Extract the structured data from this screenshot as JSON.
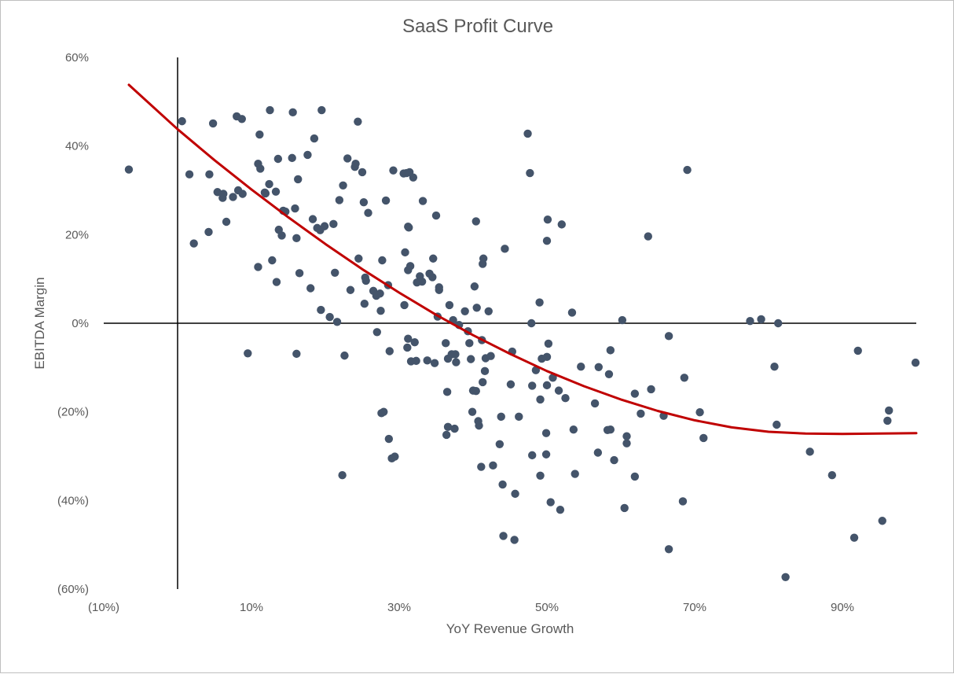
{
  "chart_data": {
    "type": "scatter",
    "title": "SaaS Profit Curve",
    "xlabel": "YoY Revenue Growth",
    "ylabel": "EBITDA Margin",
    "xlim": [
      -10,
      100
    ],
    "ylim": [
      -60,
      60
    ],
    "x_ticks": [
      {
        "value": -10,
        "label": "(10%)"
      },
      {
        "value": 10,
        "label": "10%"
      },
      {
        "value": 30,
        "label": "30%"
      },
      {
        "value": 50,
        "label": "50%"
      },
      {
        "value": 70,
        "label": "70%"
      },
      {
        "value": 90,
        "label": "90%"
      }
    ],
    "y_ticks": [
      {
        "value": 60,
        "label": "60%"
      },
      {
        "value": 40,
        "label": "40%"
      },
      {
        "value": 20,
        "label": "20%"
      },
      {
        "value": 0,
        "label": "0%"
      },
      {
        "value": -20,
        "label": "(20%)"
      },
      {
        "value": -40,
        "label": "(40%)"
      },
      {
        "value": -60,
        "label": "(60%)"
      }
    ],
    "grid": false,
    "legend": "none",
    "colors": {
      "points": "#44546a",
      "trend": "#c00000",
      "axis": "#000000",
      "text": "#595959"
    },
    "series": [
      {
        "type": "scatter",
        "points": [
          [
            -6.6,
            34.7
          ],
          [
            0.6,
            45.6
          ],
          [
            1.6,
            33.6
          ],
          [
            2.2,
            18
          ],
          [
            4.2,
            20.6
          ],
          [
            4.3,
            33.6
          ],
          [
            4.8,
            45.1
          ],
          [
            5.4,
            29.6
          ],
          [
            6.1,
            28.3
          ],
          [
            6.2,
            29.2
          ],
          [
            6.6,
            22.9
          ],
          [
            7.5,
            28.5
          ],
          [
            8,
            46.7
          ],
          [
            8.2,
            30
          ],
          [
            8.7,
            46.1
          ],
          [
            8.8,
            29.2
          ],
          [
            9.5,
            -6.8
          ],
          [
            10.9,
            36
          ],
          [
            10.9,
            12.7
          ],
          [
            11.1,
            42.6
          ],
          [
            11.2,
            34.9
          ],
          [
            11.8,
            29.5
          ],
          [
            11.9,
            29.3
          ],
          [
            12.4,
            31.4
          ],
          [
            12.5,
            48.1
          ],
          [
            12.8,
            14.2
          ],
          [
            13.3,
            29.7
          ],
          [
            13.4,
            9.3
          ],
          [
            13.6,
            37.1
          ],
          [
            13.7,
            21.1
          ],
          [
            14.1,
            19.8
          ],
          [
            14.3,
            25.4
          ],
          [
            14.6,
            25.2
          ],
          [
            15.5,
            37.3
          ],
          [
            15.6,
            47.6
          ],
          [
            15.9,
            25.9
          ],
          [
            16.1,
            19.2
          ],
          [
            16.1,
            -6.9
          ],
          [
            16.3,
            32.5
          ],
          [
            16.5,
            11.3
          ],
          [
            17.6,
            38
          ],
          [
            18,
            7.9
          ],
          [
            18.3,
            23.5
          ],
          [
            18.5,
            41.7
          ],
          [
            18.9,
            21.5
          ],
          [
            19.3,
            21
          ],
          [
            19.4,
            3
          ],
          [
            19.5,
            48.1
          ],
          [
            19.9,
            21.9
          ],
          [
            20.6,
            1.4
          ],
          [
            21.1,
            22.4
          ],
          [
            21.3,
            11.4
          ],
          [
            21.6,
            0.3
          ],
          [
            21.9,
            27.8
          ],
          [
            22.3,
            -34.3
          ],
          [
            22.4,
            31.1
          ],
          [
            22.6,
            -7.3
          ],
          [
            23,
            37.2
          ],
          [
            23.4,
            7.5
          ],
          [
            24,
            35.3
          ],
          [
            24.1,
            36
          ],
          [
            24.4,
            45.5
          ],
          [
            24.5,
            14.6
          ],
          [
            25,
            34.1
          ],
          [
            25.2,
            27.3
          ],
          [
            25.3,
            4.4
          ],
          [
            25.4,
            10.3
          ],
          [
            25.5,
            9.6
          ],
          [
            25.8,
            24.9
          ],
          [
            26.5,
            7.3
          ],
          [
            26.9,
            6.2
          ],
          [
            27,
            -2
          ],
          [
            27.4,
            6.7
          ],
          [
            27.5,
            2.8
          ],
          [
            27.6,
            -20.3
          ],
          [
            27.7,
            14.2
          ],
          [
            27.9,
            -20
          ],
          [
            28.2,
            27.7
          ],
          [
            28.5,
            8.6
          ],
          [
            28.6,
            -26.1
          ],
          [
            28.7,
            -6.3
          ],
          [
            29,
            -30.5
          ],
          [
            29.2,
            34.5
          ],
          [
            29.4,
            -30.1
          ],
          [
            30.6,
            33.8
          ],
          [
            30.7,
            4.1
          ],
          [
            30.8,
            16
          ],
          [
            31,
            33.9
          ],
          [
            31.1,
            -5.5
          ],
          [
            31.2,
            12
          ],
          [
            31.2,
            -3.5
          ],
          [
            31.2,
            21.8
          ],
          [
            31.3,
            21.6
          ],
          [
            31.4,
            34.1
          ],
          [
            31.5,
            12.9
          ],
          [
            31.6,
            -8.6
          ],
          [
            31.9,
            32.9
          ],
          [
            32.1,
            -4.3
          ],
          [
            32.3,
            -8.5
          ],
          [
            32.4,
            9.2
          ],
          [
            32.8,
            10.6
          ],
          [
            33.1,
            9.4
          ],
          [
            33.2,
            27.6
          ],
          [
            33.8,
            -8.4
          ],
          [
            34.1,
            11.2
          ],
          [
            34.5,
            10.4
          ],
          [
            34.6,
            14.6
          ],
          [
            34.8,
            -9
          ],
          [
            35,
            24.3
          ],
          [
            35.2,
            1.5
          ],
          [
            35.4,
            8.1
          ],
          [
            35.4,
            7.5
          ],
          [
            36.3,
            -4.5
          ],
          [
            36.4,
            -25.2
          ],
          [
            36.5,
            -15.5
          ],
          [
            36.6,
            -23.4
          ],
          [
            36.6,
            -8
          ],
          [
            36.8,
            4.1
          ],
          [
            37.1,
            -7
          ],
          [
            37.3,
            0.7
          ],
          [
            37.5,
            -23.8
          ],
          [
            37.6,
            -7
          ],
          [
            37.7,
            -8.8
          ],
          [
            38.1,
            -0.4
          ],
          [
            38.9,
            2.7
          ],
          [
            39.3,
            -1.8
          ],
          [
            39.5,
            -4.5
          ],
          [
            39.7,
            -8.1
          ],
          [
            39.9,
            -20
          ],
          [
            40,
            -15.2
          ],
          [
            40.2,
            8.3
          ],
          [
            40.4,
            -15.3
          ],
          [
            40.4,
            23
          ],
          [
            40.5,
            3.5
          ],
          [
            40.7,
            -22.1
          ],
          [
            40.8,
            -23.1
          ],
          [
            41.1,
            -32.4
          ],
          [
            41.2,
            -3.8
          ],
          [
            41.3,
            -13.3
          ],
          [
            41.3,
            13.4
          ],
          [
            41.4,
            14.6
          ],
          [
            41.6,
            -10.8
          ],
          [
            41.7,
            -7.9
          ],
          [
            42.1,
            2.7
          ],
          [
            42.4,
            -7.4
          ],
          [
            42.7,
            -32.1
          ],
          [
            43.6,
            -27.3
          ],
          [
            43.8,
            -21.1
          ],
          [
            44,
            -36.4
          ],
          [
            44.1,
            -48
          ],
          [
            44.3,
            16.8
          ],
          [
            45.1,
            -13.8
          ],
          [
            45.3,
            -6.4
          ],
          [
            45.6,
            -48.9
          ],
          [
            45.7,
            -38.5
          ],
          [
            46.2,
            -21.1
          ],
          [
            47.4,
            42.8
          ],
          [
            47.7,
            33.9
          ],
          [
            47.9,
            0
          ],
          [
            48,
            -29.8
          ],
          [
            48,
            -14.1
          ],
          [
            48.5,
            -10.6
          ],
          [
            49,
            4.7
          ],
          [
            49.1,
            -17.2
          ],
          [
            49.1,
            -34.4
          ],
          [
            49.3,
            -8
          ],
          [
            49.9,
            -24.8
          ],
          [
            49.9,
            -29.6
          ],
          [
            50,
            18.6
          ],
          [
            50,
            -14
          ],
          [
            50,
            -7.6
          ],
          [
            50.1,
            23.4
          ],
          [
            50.2,
            -4.6
          ],
          [
            50.5,
            -40.4
          ],
          [
            50.8,
            -12.3
          ],
          [
            51.6,
            -15.2
          ],
          [
            51.8,
            -42.1
          ],
          [
            52,
            22.3
          ],
          [
            52.5,
            -16.9
          ],
          [
            53.4,
            2.4
          ],
          [
            53.6,
            -24
          ],
          [
            53.8,
            -34
          ],
          [
            54.6,
            -9.8
          ],
          [
            56.5,
            -18.1
          ],
          [
            56.9,
            -29.2
          ],
          [
            57,
            -9.9
          ],
          [
            58.2,
            -24.1
          ],
          [
            58.4,
            -11.5
          ],
          [
            58.6,
            -6.1
          ],
          [
            58.6,
            -24
          ],
          [
            59.1,
            -30.9
          ],
          [
            60.2,
            0.7
          ],
          [
            60.5,
            -41.7
          ],
          [
            60.8,
            -25.5
          ],
          [
            60.8,
            -27.1
          ],
          [
            61.9,
            -34.6
          ],
          [
            61.9,
            -15.9
          ],
          [
            62.7,
            -20.4
          ],
          [
            63.7,
            19.6
          ],
          [
            64.1,
            -14.9
          ],
          [
            65.8,
            -20.9
          ],
          [
            66.5,
            -51
          ],
          [
            66.5,
            -2.9
          ],
          [
            68.4,
            -40.2
          ],
          [
            68.6,
            -12.3
          ],
          [
            69,
            34.6
          ],
          [
            70.7,
            -20.1
          ],
          [
            71.2,
            -25.9
          ],
          [
            77.5,
            0.5
          ],
          [
            79,
            0.9
          ],
          [
            80.8,
            -9.8
          ],
          [
            81.1,
            -22.9
          ],
          [
            81.3,
            0
          ],
          [
            82.3,
            -57.3
          ],
          [
            85.6,
            -29
          ],
          [
            88.6,
            -34.3
          ],
          [
            91.6,
            -48.4
          ],
          [
            92.1,
            -6.2
          ],
          [
            95.4,
            -44.6
          ],
          [
            96.1,
            -22
          ],
          [
            96.3,
            -19.7
          ],
          [
            99.9,
            -8.9
          ]
        ]
      },
      {
        "type": "line",
        "points": [
          [
            -6.6,
            53.8
          ],
          [
            0,
            43.8
          ],
          [
            5,
            36.8
          ],
          [
            10,
            30.2
          ],
          [
            15,
            23.9
          ],
          [
            20,
            17.9
          ],
          [
            25,
            12.2
          ],
          [
            30,
            6.9
          ],
          [
            35,
            1.9
          ],
          [
            40,
            -2.7
          ],
          [
            45,
            -6.9
          ],
          [
            50,
            -10.8
          ],
          [
            55,
            -14.2
          ],
          [
            60,
            -17.2
          ],
          [
            65,
            -19.8
          ],
          [
            70,
            -21.9
          ],
          [
            75,
            -23.5
          ],
          [
            80,
            -24.5
          ],
          [
            85,
            -24.9
          ],
          [
            90,
            -25
          ],
          [
            95,
            -24.9
          ],
          [
            100,
            -24.8
          ]
        ]
      }
    ]
  }
}
